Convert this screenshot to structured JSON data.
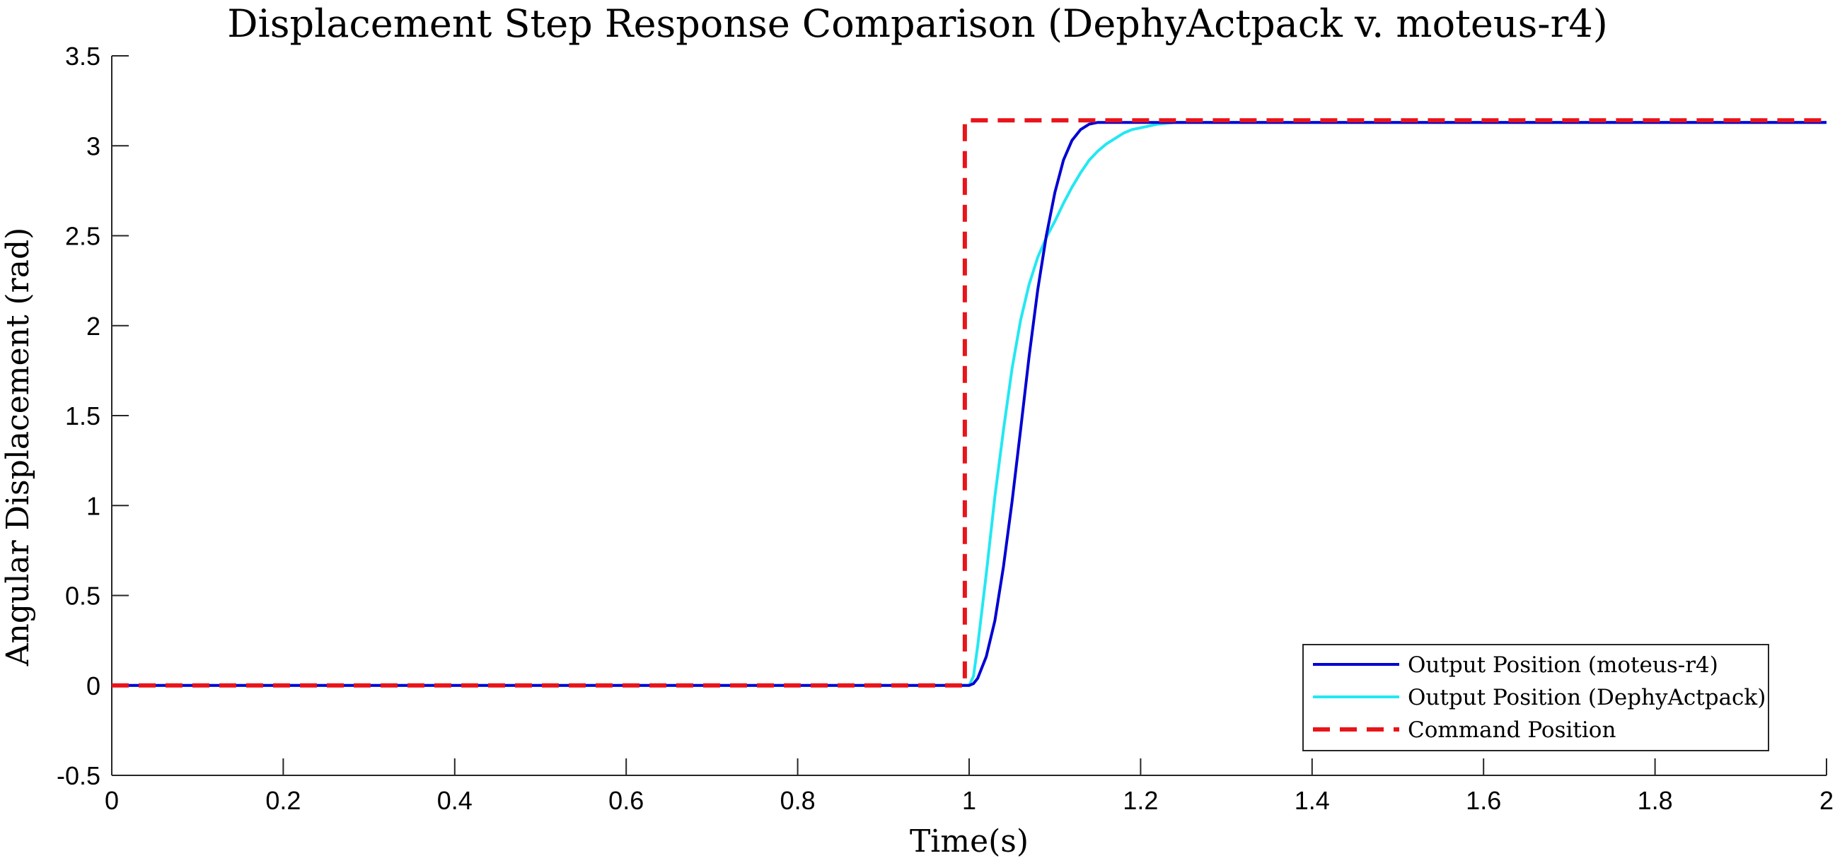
{
  "chart_data": {
    "type": "line",
    "title": "Displacement Step Response Comparison (DephyActpack v. moteus-r4)",
    "xlabel": "Time(s)",
    "ylabel": "Angular Displacement (rad)",
    "xlim": [
      0,
      2
    ],
    "ylim": [
      -0.5,
      3.5
    ],
    "xticks": [
      0,
      0.2,
      0.4,
      0.6,
      0.8,
      1,
      1.2,
      1.4,
      1.6,
      1.8,
      2
    ],
    "xtick_labels": [
      "0",
      "0.2",
      "0.4",
      "0.6",
      "0.8",
      "1",
      "1.2",
      "1.4",
      "1.6",
      "1.8",
      "2"
    ],
    "yticks": [
      -0.5,
      0,
      0.5,
      1,
      1.5,
      2,
      2.5,
      3,
      3.5
    ],
    "ytick_labels": [
      "-0.5",
      "0",
      "0.5",
      "1",
      "1.5",
      "2",
      "2.5",
      "3",
      "3.5"
    ],
    "grid": false,
    "legend_position": "bottom-right",
    "series": [
      {
        "name": "Output Position (moteus-r4)",
        "color": "#0000d4",
        "style": "solid",
        "x": [
          0,
          1.0,
          1.005,
          1.01,
          1.02,
          1.03,
          1.04,
          1.05,
          1.06,
          1.07,
          1.08,
          1.09,
          1.1,
          1.11,
          1.12,
          1.13,
          1.14,
          1.15,
          1.16,
          1.17,
          1.18,
          1.2,
          1.3,
          2.0
        ],
        "y": [
          0,
          0,
          0.01,
          0.04,
          0.16,
          0.36,
          0.66,
          1.02,
          1.42,
          1.83,
          2.2,
          2.5,
          2.74,
          2.92,
          3.03,
          3.09,
          3.12,
          3.13,
          3.13,
          3.13,
          3.13,
          3.13,
          3.13,
          3.13
        ]
      },
      {
        "name": "Output Position (DephyActpack)",
        "color": "#22e8f2",
        "style": "solid",
        "x": [
          0,
          1.0,
          1.005,
          1.01,
          1.02,
          1.03,
          1.04,
          1.05,
          1.06,
          1.07,
          1.08,
          1.09,
          1.1,
          1.11,
          1.12,
          1.13,
          1.14,
          1.15,
          1.16,
          1.17,
          1.18,
          1.19,
          1.2,
          1.22,
          1.24,
          1.26,
          1.3,
          2.0
        ],
        "y": [
          0,
          0,
          0.05,
          0.22,
          0.62,
          1.05,
          1.42,
          1.76,
          2.03,
          2.23,
          2.38,
          2.49,
          2.58,
          2.68,
          2.77,
          2.85,
          2.92,
          2.97,
          3.01,
          3.04,
          3.07,
          3.09,
          3.1,
          3.12,
          3.13,
          3.13,
          3.13,
          3.13
        ]
      },
      {
        "name": "Command Position",
        "color": "#e8141a",
        "style": "dashed",
        "x": [
          0,
          0.995,
          0.995,
          2.0
        ],
        "y": [
          0,
          0,
          3.1416,
          3.1416
        ]
      }
    ]
  }
}
